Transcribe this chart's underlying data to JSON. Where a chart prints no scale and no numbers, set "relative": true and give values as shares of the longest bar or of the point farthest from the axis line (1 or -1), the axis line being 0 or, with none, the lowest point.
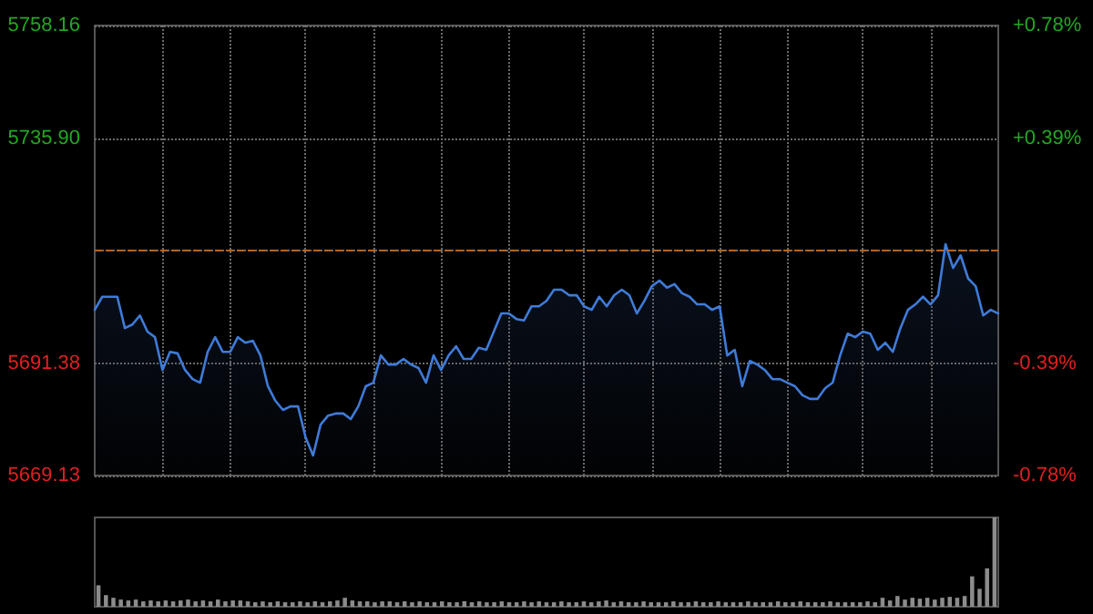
{
  "chart_data": [
    {
      "type": "area",
      "color": "#3f7bd8",
      "marker": "none",
      "grid": true,
      "tick_labels": "y",
      "categories": [
        null,
        null,
        null,
        null,
        null,
        null,
        null,
        null,
        null,
        null,
        null,
        null,
        null,
        null,
        null,
        null,
        null,
        null,
        null,
        null,
        null,
        null,
        null,
        null,
        null,
        null,
        null,
        null,
        null,
        null,
        null,
        null,
        null,
        null,
        null,
        null,
        null,
        null,
        null,
        null,
        null,
        null,
        null,
        null,
        null,
        null,
        null,
        null,
        null,
        null,
        null,
        null,
        null,
        null,
        null,
        null,
        null,
        null,
        null,
        null,
        null,
        null,
        null,
        null,
        null,
        null,
        null,
        null,
        null,
        null,
        null,
        null,
        null,
        null,
        null,
        null,
        null,
        null,
        null,
        null,
        null,
        null,
        null,
        null,
        null,
        null,
        null,
        null,
        null,
        null,
        null,
        null,
        null,
        null,
        null,
        null,
        null,
        null,
        null,
        null,
        null,
        null,
        null,
        null,
        null,
        null,
        null,
        null,
        null,
        null,
        null,
        null,
        null,
        null,
        null,
        null,
        null,
        null,
        null,
        null,
        null
      ],
      "values": [
        5701.9,
        5704.5,
        5704.5,
        5704.5,
        5698.3,
        5699.0,
        5700.8,
        5697.6,
        5696.5,
        5690.0,
        5693.6,
        5693.3,
        5690.0,
        5688.2,
        5687.5,
        5693.6,
        5696.5,
        5693.6,
        5693.6,
        5696.5,
        5695.4,
        5695.8,
        5692.9,
        5686.8,
        5683.9,
        5682.1,
        5682.8,
        5682.8,
        5676.7,
        5673.1,
        5679.2,
        5681.0,
        5681.4,
        5681.4,
        5680.3,
        5682.8,
        5686.8,
        5687.5,
        5692.9,
        5691.1,
        5691.1,
        5692.2,
        5691.1,
        5690.4,
        5687.5,
        5692.9,
        5690.0,
        5692.9,
        5694.7,
        5692.2,
        5692.2,
        5694.4,
        5694.0,
        5697.6,
        5701.2,
        5701.2,
        5700.1,
        5699.8,
        5702.6,
        5702.6,
        5703.7,
        5705.9,
        5705.9,
        5704.8,
        5704.8,
        5702.6,
        5701.9,
        5704.5,
        5702.6,
        5704.8,
        5705.9,
        5704.8,
        5701.2,
        5703.7,
        5706.6,
        5707.7,
        5706.3,
        5707.0,
        5705.2,
        5704.5,
        5703.0,
        5703.0,
        5701.9,
        5702.6,
        5692.9,
        5694.0,
        5686.8,
        5691.8,
        5691.1,
        5690.0,
        5688.2,
        5688.2,
        5687.5,
        5686.8,
        5685.0,
        5684.3,
        5684.3,
        5686.4,
        5687.5,
        5692.9,
        5697.2,
        5696.5,
        5697.6,
        5697.2,
        5694.0,
        5695.4,
        5693.6,
        5698.3,
        5701.9,
        5703.0,
        5704.5,
        5703.0,
        5704.8,
        5714.9,
        5710.2,
        5712.7,
        5708.1,
        5706.6,
        5700.8,
        5701.9,
        5701.2
      ],
      "ylim": [
        5669.13,
        5758.16
      ],
      "yticks": [
        {
          "value": 5669.13,
          "label": "5669.13"
        },
        {
          "value": 5691.38,
          "label": "5691.38"
        },
        {
          "value": 5713.64,
          "label": null
        },
        {
          "value": 5735.9,
          "label": "5735.90"
        },
        {
          "value": 5758.16,
          "label": "5758.16"
        }
      ],
      "y2lim": [
        -0.78,
        0.78
      ],
      "y2ticks": [
        {
          "value": -0.78,
          "label": "-0.78%"
        },
        {
          "value": -0.39,
          "label": "-0.39%"
        },
        {
          "value": 0,
          "label": null
        },
        {
          "value": 0.39,
          "label": "+0.39%"
        },
        {
          "value": 0.78,
          "label": "+0.78%"
        }
      ],
      "ref_lines": [
        {
          "axis": "y",
          "value": 5713.64,
          "color": "#b5651d",
          "line_style": "dashed"
        }
      ]
    },
    {
      "type": "bar",
      "relative": true,
      "color": "#8c8c8c",
      "categories": [
        null,
        null,
        null,
        null,
        null,
        null,
        null,
        null,
        null,
        null,
        null,
        null,
        null,
        null,
        null,
        null,
        null,
        null,
        null,
        null,
        null,
        null,
        null,
        null,
        null,
        null,
        null,
        null,
        null,
        null,
        null,
        null,
        null,
        null,
        null,
        null,
        null,
        null,
        null,
        null,
        null,
        null,
        null,
        null,
        null,
        null,
        null,
        null,
        null,
        null,
        null,
        null,
        null,
        null,
        null,
        null,
        null,
        null,
        null,
        null,
        null,
        null,
        null,
        null,
        null,
        null,
        null,
        null,
        null,
        null,
        null,
        null,
        null,
        null,
        null,
        null,
        null,
        null,
        null,
        null,
        null,
        null,
        null,
        null,
        null,
        null,
        null,
        null,
        null,
        null,
        null,
        null,
        null,
        null,
        null,
        null,
        null,
        null,
        null,
        null,
        null,
        null,
        null,
        null,
        null,
        null,
        null,
        null,
        null,
        null,
        null,
        null,
        null,
        null,
        null,
        null,
        null,
        null,
        null,
        null,
        null
      ],
      "values": [
        0.24,
        0.13,
        0.1,
        0.08,
        0.07,
        0.08,
        0.06,
        0.07,
        0.06,
        0.07,
        0.06,
        0.07,
        0.08,
        0.06,
        0.07,
        0.06,
        0.08,
        0.06,
        0.07,
        0.07,
        0.06,
        0.05,
        0.06,
        0.05,
        0.06,
        0.05,
        0.05,
        0.06,
        0.05,
        0.06,
        0.05,
        0.06,
        0.07,
        0.1,
        0.07,
        0.06,
        0.06,
        0.05,
        0.06,
        0.06,
        0.05,
        0.06,
        0.05,
        0.06,
        0.05,
        0.05,
        0.06,
        0.05,
        0.05,
        0.06,
        0.05,
        0.06,
        0.05,
        0.05,
        0.06,
        0.05,
        0.05,
        0.06,
        0.05,
        0.06,
        0.05,
        0.05,
        0.06,
        0.05,
        0.05,
        0.06,
        0.05,
        0.06,
        0.07,
        0.05,
        0.06,
        0.05,
        0.05,
        0.06,
        0.05,
        0.05,
        0.05,
        0.06,
        0.05,
        0.05,
        0.06,
        0.05,
        0.05,
        0.06,
        0.05,
        0.05,
        0.05,
        0.06,
        0.05,
        0.05,
        0.05,
        0.06,
        0.05,
        0.05,
        0.06,
        0.05,
        0.05,
        0.05,
        0.06,
        0.05,
        0.05,
        0.05,
        0.05,
        0.06,
        0.05,
        0.1,
        0.07,
        0.12,
        0.08,
        0.1,
        0.09,
        0.1,
        0.08,
        0.1,
        0.11,
        0.1,
        0.12,
        0.34,
        0.2,
        0.43,
        1
      ]
    }
  ]
}
